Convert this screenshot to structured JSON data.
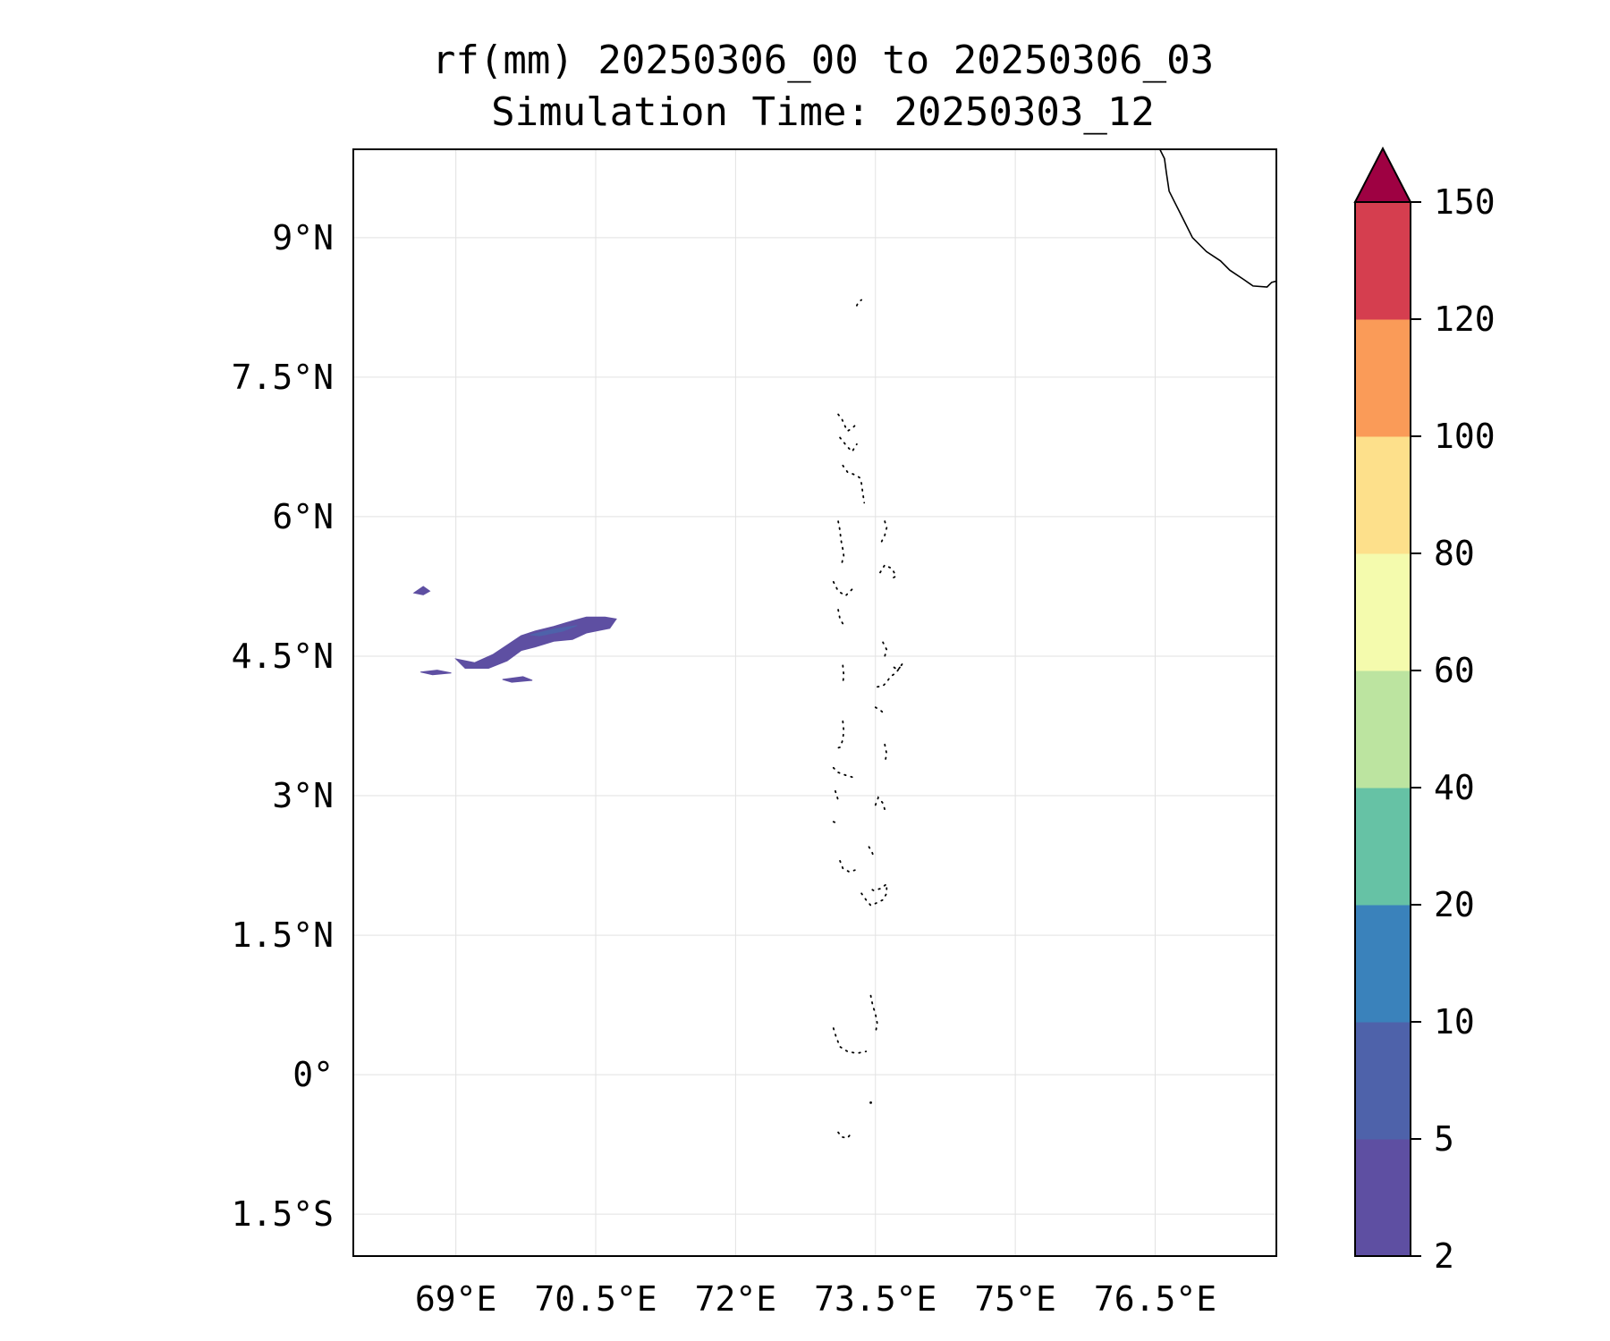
{
  "title": {
    "line1": "rf(mm) 20250306_00 to 20250306_03",
    "line2": "Simulation Time: 20250303_12"
  },
  "map": {
    "projection": "PlateCarree",
    "lon_range_deg": [
      67.9,
      77.8
    ],
    "lat_range_deg": [
      -1.95,
      9.95
    ],
    "gridlines": true,
    "lon_ticks": [
      {
        "value": 69.0,
        "label": "69°E"
      },
      {
        "value": 70.5,
        "label": "70.5°E"
      },
      {
        "value": 72.0,
        "label": "72°E"
      },
      {
        "value": 73.5,
        "label": "73.5°E"
      },
      {
        "value": 75.0,
        "label": "75°E"
      },
      {
        "value": 76.5,
        "label": "76.5°E"
      }
    ],
    "lat_ticks": [
      {
        "value": 9.0,
        "label": "9°N"
      },
      {
        "value": 7.5,
        "label": "7.5°N"
      },
      {
        "value": 6.0,
        "label": "6°N"
      },
      {
        "value": 4.5,
        "label": "4.5°N"
      },
      {
        "value": 3.0,
        "label": "3°N"
      },
      {
        "value": 1.5,
        "label": "1.5°N"
      },
      {
        "value": 0.0,
        "label": "0°"
      },
      {
        "value": -1.5,
        "label": "1.5°S"
      }
    ]
  },
  "colorbar": {
    "boundaries": [
      2,
      5,
      10,
      20,
      40,
      60,
      80,
      100,
      120,
      150
    ],
    "labels": [
      "2",
      "5",
      "10",
      "20",
      "40",
      "60",
      "80",
      "100",
      "120",
      "150"
    ],
    "colors": [
      "#5e4fa2",
      "#4e62aa",
      "#3a82bb",
      "#66c2a5",
      "#bce4a0",
      "#f4fbad",
      "#fde08b",
      "#fa9b58",
      "#d53e4f"
    ],
    "extend_color": "#9e0142",
    "extend": "max"
  },
  "rainfall_regions": [
    {
      "name": "main-band",
      "category": "2-5",
      "color": "#5e4fa2",
      "outline": [
        [
          69.4,
          4.52
        ],
        [
          69.55,
          4.62
        ],
        [
          69.7,
          4.72
        ],
        [
          69.85,
          4.77
        ],
        [
          70.05,
          4.82
        ],
        [
          70.25,
          4.88
        ],
        [
          70.4,
          4.92
        ],
        [
          70.6,
          4.92
        ],
        [
          70.72,
          4.9
        ],
        [
          70.65,
          4.8
        ],
        [
          70.55,
          4.78
        ],
        [
          70.4,
          4.75
        ],
        [
          70.25,
          4.68
        ],
        [
          70.05,
          4.66
        ],
        [
          69.85,
          4.6
        ],
        [
          69.7,
          4.56
        ],
        [
          69.55,
          4.45
        ],
        [
          69.35,
          4.37
        ],
        [
          69.1,
          4.37
        ],
        [
          69.0,
          4.47
        ],
        [
          69.2,
          4.43
        ]
      ]
    },
    {
      "name": "band-core",
      "category": "5-10",
      "color": "#4e62aa",
      "outline": [
        [
          69.8,
          4.73
        ],
        [
          70.05,
          4.79
        ],
        [
          70.3,
          4.83
        ],
        [
          70.15,
          4.77
        ],
        [
          69.9,
          4.72
        ]
      ]
    },
    {
      "name": "west-speck",
      "category": "2-5",
      "color": "#5e4fa2",
      "outline": [
        [
          68.55,
          5.18
        ],
        [
          68.65,
          5.25
        ],
        [
          68.72,
          5.2
        ],
        [
          68.65,
          5.16
        ]
      ]
    },
    {
      "name": "south-speck-1",
      "category": "2-5",
      "color": "#5e4fa2",
      "outline": [
        [
          68.62,
          4.33
        ],
        [
          68.8,
          4.35
        ],
        [
          68.95,
          4.32
        ],
        [
          68.75,
          4.3
        ]
      ]
    },
    {
      "name": "south-speck-2",
      "category": "2-5",
      "color": "#5e4fa2",
      "outline": [
        [
          69.5,
          4.25
        ],
        [
          69.72,
          4.28
        ],
        [
          69.82,
          4.24
        ],
        [
          69.6,
          4.22
        ]
      ]
    }
  ],
  "coastlines": {
    "india_tip": [
      [
        76.55,
        9.95
      ],
      [
        76.6,
        9.85
      ],
      [
        76.62,
        9.7
      ],
      [
        76.65,
        9.5
      ],
      [
        76.7,
        9.4
      ],
      [
        76.8,
        9.2
      ],
      [
        76.9,
        9.0
      ],
      [
        77.05,
        8.85
      ],
      [
        77.2,
        8.75
      ],
      [
        77.3,
        8.65
      ],
      [
        77.45,
        8.55
      ],
      [
        77.55,
        8.48
      ],
      [
        77.7,
        8.47
      ],
      [
        77.75,
        8.52
      ],
      [
        77.9,
        8.56
      ],
      [
        77.95,
        8.6
      ]
    ],
    "maldives_atolls": [
      [
        [
          73.3,
          8.27
        ],
        [
          73.32,
          8.31
        ],
        [
          73.35,
          8.33
        ]
      ],
      [
        [
          73.1,
          7.1
        ],
        [
          73.14,
          7.05
        ],
        [
          73.17,
          6.98
        ],
        [
          73.2,
          6.92
        ],
        [
          73.25,
          6.95
        ],
        [
          73.28,
          6.98
        ],
        [
          73.3,
          7.0
        ]
      ],
      [
        [
          73.12,
          6.85
        ],
        [
          73.16,
          6.8
        ],
        [
          73.2,
          6.75
        ],
        [
          73.25,
          6.7
        ],
        [
          73.3,
          6.78
        ]
      ],
      [
        [
          73.15,
          6.55
        ],
        [
          73.2,
          6.48
        ],
        [
          73.28,
          6.45
        ],
        [
          73.33,
          6.42
        ],
        [
          73.35,
          6.36
        ],
        [
          73.36,
          6.28
        ],
        [
          73.38,
          6.15
        ]
      ],
      [
        [
          73.1,
          5.95
        ],
        [
          73.12,
          5.85
        ],
        [
          73.13,
          5.75
        ],
        [
          73.15,
          5.65
        ],
        [
          73.16,
          5.58
        ],
        [
          73.14,
          5.5
        ]
      ],
      [
        [
          73.6,
          5.95
        ],
        [
          73.62,
          5.88
        ],
        [
          73.6,
          5.8
        ],
        [
          73.55,
          5.7
        ]
      ],
      [
        [
          73.55,
          5.4
        ],
        [
          73.6,
          5.48
        ],
        [
          73.68,
          5.44
        ],
        [
          73.72,
          5.36
        ],
        [
          73.65,
          5.32
        ]
      ],
      [
        [
          73.05,
          5.3
        ],
        [
          73.1,
          5.2
        ],
        [
          73.18,
          5.15
        ],
        [
          73.25,
          5.22
        ]
      ],
      [
        [
          73.1,
          5.0
        ],
        [
          73.12,
          4.9
        ],
        [
          73.15,
          4.85
        ]
      ],
      [
        [
          73.58,
          4.65
        ],
        [
          73.62,
          4.57
        ],
        [
          73.6,
          4.5
        ]
      ],
      [
        [
          73.7,
          4.38
        ],
        [
          73.74,
          4.35
        ],
        [
          73.79,
          4.42
        ],
        [
          73.72,
          4.32
        ],
        [
          73.66,
          4.28
        ],
        [
          73.62,
          4.22
        ],
        [
          73.58,
          4.18
        ],
        [
          73.52,
          4.17
        ]
      ],
      [
        [
          73.15,
          4.4
        ],
        [
          73.16,
          4.3
        ],
        [
          73.15,
          4.2
        ]
      ],
      [
        [
          73.5,
          3.95
        ],
        [
          73.55,
          3.92
        ],
        [
          73.6,
          3.88
        ]
      ],
      [
        [
          73.15,
          3.8
        ],
        [
          73.16,
          3.7
        ],
        [
          73.15,
          3.6
        ],
        [
          73.12,
          3.52
        ],
        [
          73.05,
          3.5
        ]
      ],
      [
        [
          73.6,
          3.55
        ],
        [
          73.62,
          3.45
        ],
        [
          73.6,
          3.35
        ]
      ],
      [
        [
          73.05,
          3.3
        ],
        [
          73.1,
          3.25
        ],
        [
          73.18,
          3.22
        ],
        [
          73.25,
          3.2
        ]
      ],
      [
        [
          73.07,
          3.05
        ],
        [
          73.1,
          2.95
        ]
      ],
      [
        [
          73.5,
          2.9
        ],
        [
          73.53,
          2.98
        ],
        [
          73.58,
          2.92
        ],
        [
          73.6,
          2.85
        ]
      ],
      [
        [
          73.05,
          2.72
        ],
        [
          73.1,
          2.7
        ]
      ],
      [
        [
          73.43,
          2.45
        ],
        [
          73.46,
          2.4
        ],
        [
          73.48,
          2.35
        ]
      ],
      [
        [
          73.12,
          2.3
        ],
        [
          73.15,
          2.22
        ],
        [
          73.22,
          2.18
        ],
        [
          73.28,
          2.2
        ]
      ],
      [
        [
          73.35,
          1.95
        ],
        [
          73.4,
          1.88
        ],
        [
          73.45,
          1.82
        ],
        [
          73.52,
          1.85
        ],
        [
          73.58,
          1.88
        ],
        [
          73.62,
          1.95
        ],
        [
          73.62,
          2.05
        ],
        [
          73.55,
          2.0
        ],
        [
          73.48,
          1.98
        ],
        [
          73.42,
          2.02
        ]
      ],
      [
        [
          73.45,
          0.85
        ],
        [
          73.47,
          0.75
        ],
        [
          73.5,
          0.65
        ],
        [
          73.52,
          0.55
        ],
        [
          73.5,
          0.45
        ]
      ],
      [
        [
          73.05,
          0.5
        ],
        [
          73.08,
          0.4
        ],
        [
          73.12,
          0.3
        ],
        [
          73.2,
          0.25
        ],
        [
          73.3,
          0.23
        ],
        [
          73.4,
          0.25
        ]
      ],
      [
        [
          73.45,
          -0.3
        ]
      ],
      [
        [
          73.1,
          -0.62
        ],
        [
          73.14,
          -0.67
        ],
        [
          73.2,
          -0.68
        ],
        [
          73.25,
          -0.62
        ]
      ]
    ]
  }
}
